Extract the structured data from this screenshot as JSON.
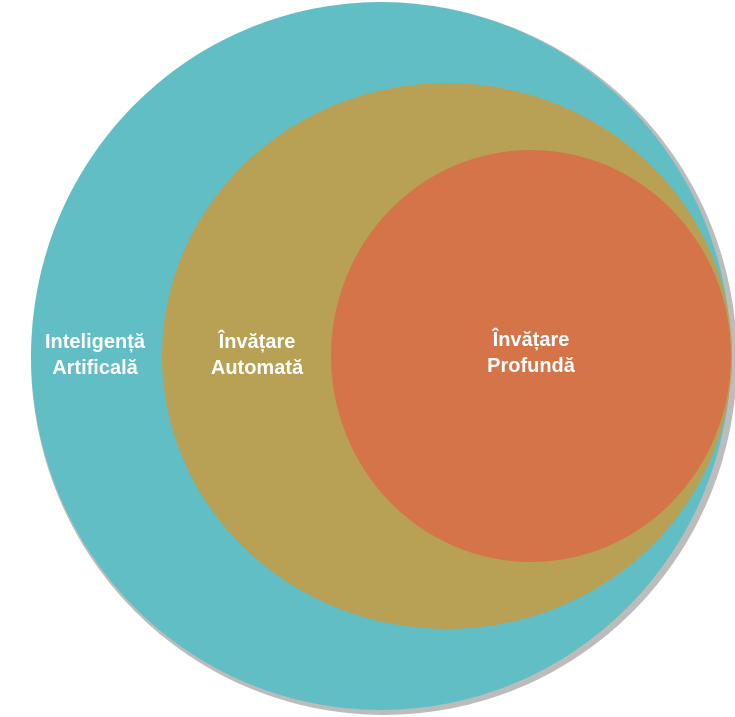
{
  "diagram": {
    "type": "nested-circles",
    "circles": [
      {
        "id": "ai",
        "label_lines": [
          "Inteligență",
          "Artificală"
        ],
        "color": "#62bec5"
      },
      {
        "id": "ml",
        "label_lines": [
          "Învățare",
          "Automată"
        ],
        "color": "#b8a054"
      },
      {
        "id": "dl",
        "label_lines": [
          "Învățare",
          "Profundă"
        ],
        "color": "#d57448"
      }
    ],
    "text_color": "#ffffff"
  }
}
